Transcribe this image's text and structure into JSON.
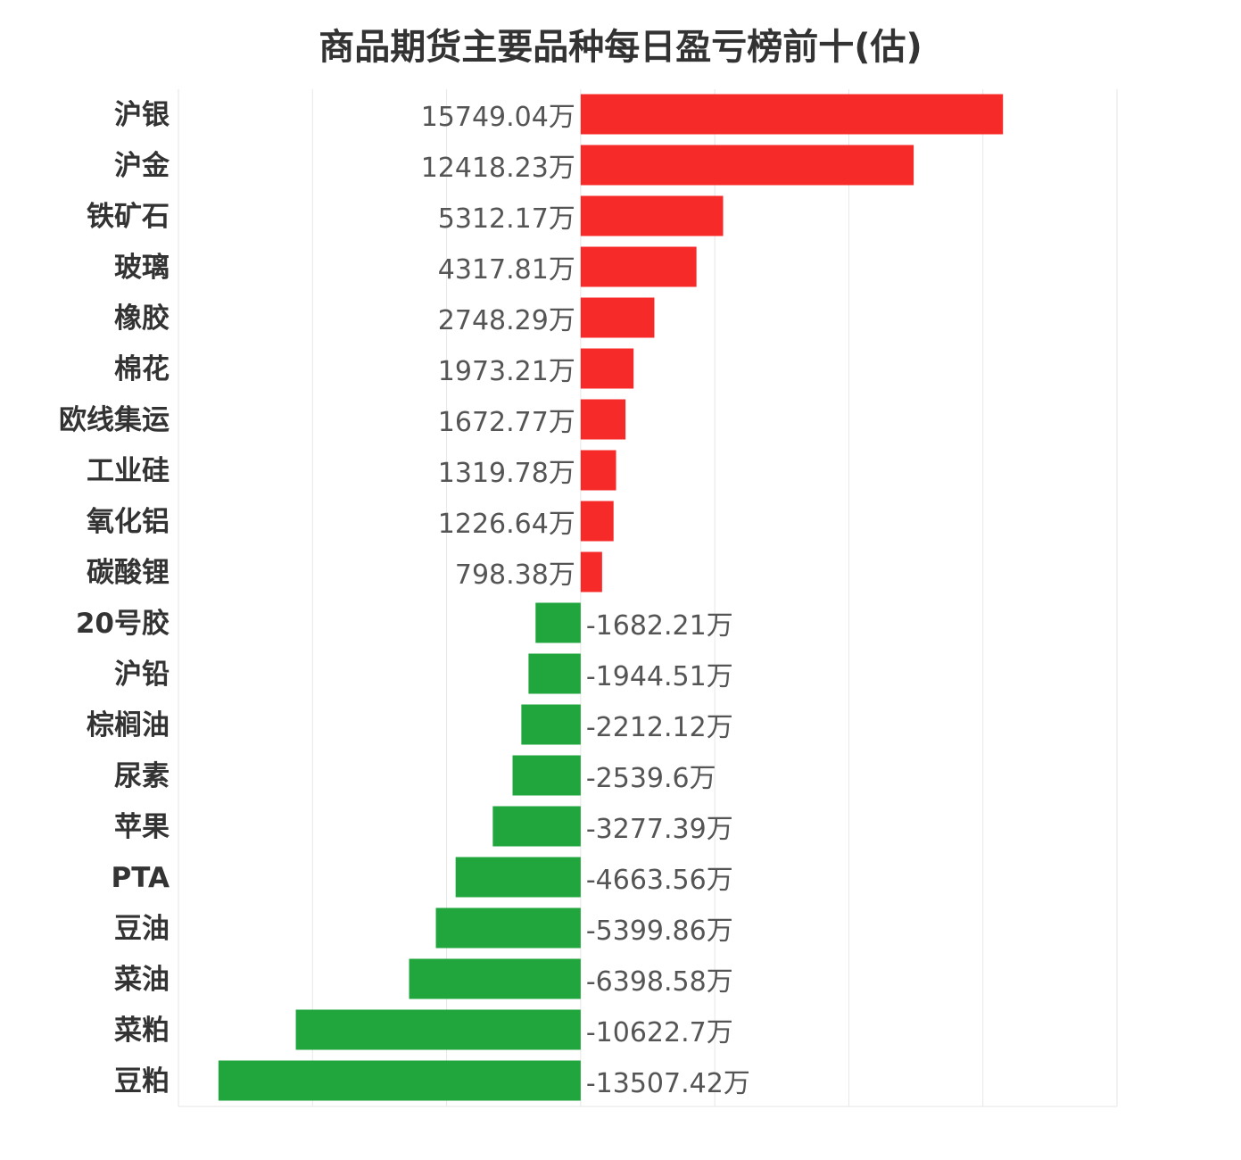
{
  "chart_data": {
    "type": "bar",
    "orientation": "horizontal",
    "title": "商品期货主要品种每日盈亏榜前十(估)",
    "unit_suffix": "万",
    "categories": [
      "沪银",
      "沪金",
      "铁矿石",
      "玻璃",
      "橡胶",
      "棉花",
      "欧线集运",
      "工业硅",
      "氧化铝",
      "碳酸锂",
      "20号胶",
      "沪铅",
      "棕榈油",
      "尿素",
      "苹果",
      "PTA",
      "豆油",
      "菜油",
      "菜粕",
      "豆粕"
    ],
    "value_labels": [
      "15749.04",
      "12418.23",
      "5312.17",
      "4317.81",
      "2748.29",
      "1973.21",
      "1672.77",
      "1319.78",
      "1226.64",
      "798.38",
      "-1682.21",
      "-1944.51",
      "-2212.12",
      "-2539.6",
      "-3277.39",
      "-4663.56",
      "-5399.86",
      "-6398.58",
      "-10622.7",
      "-13507.42"
    ],
    "values": [
      15749.04,
      12418.23,
      5312.17,
      4317.81,
      2748.29,
      1973.21,
      1672.77,
      1319.78,
      1226.64,
      798.38,
      -1682.21,
      -1944.51,
      -2212.12,
      -2539.6,
      -3277.39,
      -4663.56,
      -5399.86,
      -6398.58,
      -10622.7,
      -13507.42
    ],
    "xlim": [
      -15000,
      20000
    ],
    "grid": true,
    "colors": {
      "positive": "#f72a2a",
      "negative": "#20a63c",
      "grid": "#e6e6e6"
    }
  }
}
